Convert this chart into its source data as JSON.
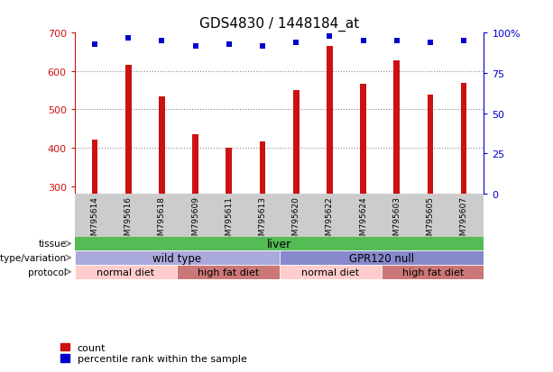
{
  "title": "GDS4830 / 1448184_at",
  "samples": [
    "GSM795614",
    "GSM795616",
    "GSM795618",
    "GSM795609",
    "GSM795611",
    "GSM795613",
    "GSM795620",
    "GSM795622",
    "GSM795624",
    "GSM795603",
    "GSM795605",
    "GSM795607"
  ],
  "bar_values": [
    420,
    617,
    533,
    435,
    400,
    417,
    550,
    665,
    567,
    627,
    538,
    568
  ],
  "percentile_values": [
    93,
    97,
    95,
    92,
    93,
    92,
    94,
    98,
    95,
    95,
    94,
    95
  ],
  "ylim_left": [
    280,
    700
  ],
  "ylim_right": [
    0,
    100
  ],
  "yticks_left": [
    300,
    400,
    500,
    600,
    700
  ],
  "yticks_right": [
    0,
    25,
    50,
    75,
    100
  ],
  "bar_color": "#cc1111",
  "dot_color": "#0000cc",
  "grid_color": "#888888",
  "tick_bg_color": "#cccccc",
  "tissue_color": "#55bb55",
  "wild_type_color": "#aaaadd",
  "gpr120_color": "#8888cc",
  "normal_diet_color": "#ffcccc",
  "high_fat_diet_color": "#cc7777",
  "tissue_label": "tissue",
  "genotype_label": "genotype/variation",
  "protocol_label": "protocol",
  "tissue_text": "liver",
  "genotype_texts": [
    "wild type",
    "GPR120 null"
  ],
  "protocol_texts": [
    "normal diet",
    "high fat diet",
    "normal diet",
    "high fat diet"
  ],
  "legend_count": "count",
  "legend_percentile": "percentile rank within the sample",
  "bg_color": "#ffffff"
}
